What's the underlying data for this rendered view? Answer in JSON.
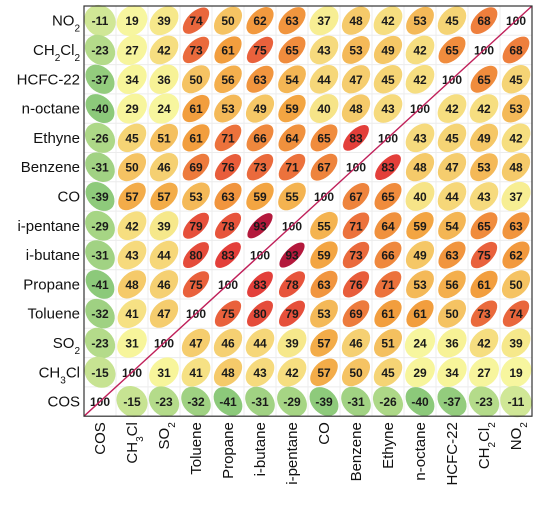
{
  "chart_data": {
    "type": "heatmap",
    "title": "",
    "rows": [
      "NO2",
      "CH2Cl2",
      "HCFC-22",
      "n-octane",
      "Ethyne",
      "Benzene",
      "CO",
      "i-pentane",
      "i-butane",
      "Propane",
      "Toluene",
      "SO2",
      "CH3Cl",
      "COS"
    ],
    "row_labels": [
      {
        "base": "NO",
        "sub": "2"
      },
      {
        "base": "CH",
        "sub": "2",
        "base2": "Cl",
        "sub2": "2"
      },
      {
        "base": "HCFC-22"
      },
      {
        "base": "n-octane"
      },
      {
        "base": "Ethyne"
      },
      {
        "base": "Benzene"
      },
      {
        "base": "CO"
      },
      {
        "base": "i-pentane"
      },
      {
        "base": "i-butane"
      },
      {
        "base": "Propane"
      },
      {
        "base": "Toluene"
      },
      {
        "base": "SO",
        "sub": "2"
      },
      {
        "base": "CH",
        "sub": "3",
        "base2": "Cl"
      },
      {
        "base": "COS"
      }
    ],
    "columns": [
      "COS",
      "CH3Cl",
      "SO2",
      "Toluene",
      "Propane",
      "i-butane",
      "i-pentane",
      "CO",
      "Benzene",
      "Ethyne",
      "n-octane",
      "HCFC-22",
      "CH2Cl2",
      "NO2"
    ],
    "column_labels": [
      {
        "base": "COS"
      },
      {
        "base": "CH",
        "sub": "3",
        "base2": "Cl"
      },
      {
        "base": "SO",
        "sub": "2"
      },
      {
        "base": "Toluene"
      },
      {
        "base": "Propane"
      },
      {
        "base": "i-butane"
      },
      {
        "base": "i-pentane"
      },
      {
        "base": "CO"
      },
      {
        "base": "Benzene"
      },
      {
        "base": "Ethyne"
      },
      {
        "base": "n-octane"
      },
      {
        "base": "HCFC-22"
      },
      {
        "base": "CH",
        "sub": "2",
        "base2": "Cl",
        "sub2": "2"
      },
      {
        "base": "NO",
        "sub": "2"
      }
    ],
    "values": [
      [
        -11,
        19,
        39,
        74,
        50,
        62,
        63,
        37,
        48,
        42,
        53,
        45,
        68,
        100
      ],
      [
        -23,
        27,
        42,
        73,
        61,
        75,
        65,
        43,
        53,
        49,
        42,
        65,
        100,
        68
      ],
      [
        -37,
        34,
        36,
        50,
        56,
        63,
        54,
        44,
        47,
        45,
        42,
        100,
        65,
        45
      ],
      [
        -40,
        29,
        24,
        61,
        53,
        49,
        59,
        40,
        48,
        43,
        100,
        42,
        42,
        53
      ],
      [
        -26,
        45,
        51,
        61,
        71,
        66,
        64,
        65,
        83,
        100,
        43,
        45,
        49,
        42
      ],
      [
        -31,
        50,
        46,
        69,
        76,
        73,
        71,
        67,
        100,
        83,
        48,
        47,
        53,
        48
      ],
      [
        -39,
        57,
        57,
        53,
        63,
        59,
        55,
        100,
        67,
        65,
        40,
        44,
        43,
        37
      ],
      [
        -29,
        42,
        39,
        79,
        78,
        93,
        100,
        55,
        71,
        64,
        59,
        54,
        65,
        63
      ],
      [
        -31,
        43,
        44,
        80,
        83,
        100,
        93,
        59,
        73,
        66,
        49,
        63,
        75,
        62
      ],
      [
        -41,
        48,
        46,
        75,
        100,
        83,
        78,
        63,
        76,
        71,
        53,
        56,
        61,
        50
      ],
      [
        -32,
        41,
        47,
        100,
        75,
        80,
        79,
        53,
        69,
        61,
        61,
        50,
        73,
        74
      ],
      [
        -23,
        31,
        100,
        47,
        46,
        44,
        39,
        57,
        46,
        51,
        24,
        36,
        42,
        39
      ],
      [
        -15,
        100,
        31,
        41,
        48,
        43,
        42,
        57,
        50,
        45,
        29,
        34,
        27,
        19
      ],
      [
        100,
        -15,
        -23,
        -32,
        -41,
        -31,
        -29,
        -39,
        -31,
        -26,
        -40,
        -37,
        -23,
        -11
      ]
    ],
    "value_range": [
      -100,
      100
    ],
    "colors": {
      "negative": "#8cc97a",
      "low": "#f7f59a",
      "mid": "#f3a23e",
      "high": "#e2363a",
      "max": "#a8123c",
      "diagonal": "#c0205a"
    },
    "grid": true,
    "legend": "none"
  }
}
